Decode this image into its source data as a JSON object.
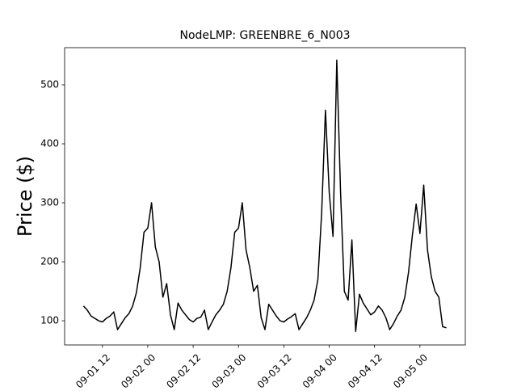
{
  "chart_data": {
    "type": "line",
    "title": "NodeLMP: GREENBRE_6_N003",
    "y_label": "Price ($)",
    "x": [
      "09-01 07",
      "09-01 08",
      "09-01 09",
      "09-01 10",
      "09-01 11",
      "09-01 12",
      "09-01 13",
      "09-01 14",
      "09-01 15",
      "09-01 16",
      "09-01 17",
      "09-01 18",
      "09-01 19",
      "09-01 20",
      "09-01 21",
      "09-01 22",
      "09-01 23",
      "09-02 00",
      "09-02 01",
      "09-02 02",
      "09-02 03",
      "09-02 04",
      "09-02 05",
      "09-02 06",
      "09-02 07",
      "09-02 08",
      "09-02 09",
      "09-02 10",
      "09-02 11",
      "09-02 12",
      "09-02 13",
      "09-02 14",
      "09-02 15",
      "09-02 16",
      "09-02 17",
      "09-02 18",
      "09-02 19",
      "09-02 20",
      "09-02 21",
      "09-02 22",
      "09-02 23",
      "09-03 00",
      "09-03 01",
      "09-03 02",
      "09-03 03",
      "09-03 04",
      "09-03 05",
      "09-03 06",
      "09-03 07",
      "09-03 08",
      "09-03 09",
      "09-03 10",
      "09-03 11",
      "09-03 12",
      "09-03 13",
      "09-03 14",
      "09-03 15",
      "09-03 16",
      "09-03 17",
      "09-03 18",
      "09-03 19",
      "09-03 20",
      "09-03 21",
      "09-03 22",
      "09-03 23",
      "09-04 00",
      "09-04 01",
      "09-04 02",
      "09-04 03",
      "09-04 04",
      "09-04 05",
      "09-04 06",
      "09-04 07",
      "09-04 08",
      "09-04 09",
      "09-04 10",
      "09-04 11",
      "09-04 12",
      "09-04 13",
      "09-04 14",
      "09-04 15",
      "09-04 16",
      "09-04 17",
      "09-04 18",
      "09-04 19",
      "09-04 20",
      "09-04 21",
      "09-04 22",
      "09-04 23",
      "09-05 00",
      "09-05 01",
      "09-05 02",
      "09-05 03",
      "09-05 04",
      "09-05 05",
      "09-05 06",
      "09-05 07"
    ],
    "series": [
      {
        "color": "#000000",
        "values": [
          125,
          118,
          108,
          104,
          100,
          98,
          104,
          108,
          115,
          85,
          95,
          105,
          112,
          125,
          148,
          190,
          250,
          257,
          300,
          225,
          200,
          140,
          163,
          110,
          85,
          130,
          118,
          110,
          102,
          98,
          104,
          106,
          118,
          85,
          98,
          110,
          118,
          128,
          150,
          190,
          250,
          257,
          300,
          220,
          190,
          150,
          160,
          105,
          85,
          128,
          118,
          108,
          100,
          98,
          103,
          107,
          112,
          85,
          95,
          105,
          118,
          135,
          170,
          283,
          457,
          318,
          243,
          542,
          318,
          150,
          135,
          237,
          82,
          145,
          130,
          120,
          110,
          115,
          125,
          118,
          105,
          85,
          95,
          108,
          118,
          140,
          183,
          245,
          298,
          248,
          330,
          220,
          175,
          150,
          140,
          90,
          88
        ]
      }
    ],
    "xlim": [
      "09-01 02",
      "09-05 12"
    ],
    "xticks": [
      "09-01 12",
      "09-02 00",
      "09-02 12",
      "09-03 00",
      "09-03 12",
      "09-04 00",
      "09-04 12",
      "09-05 00"
    ],
    "ylim": [
      59,
      563
    ],
    "yticks": [
      100,
      200,
      300,
      400,
      500
    ],
    "grid": false
  }
}
